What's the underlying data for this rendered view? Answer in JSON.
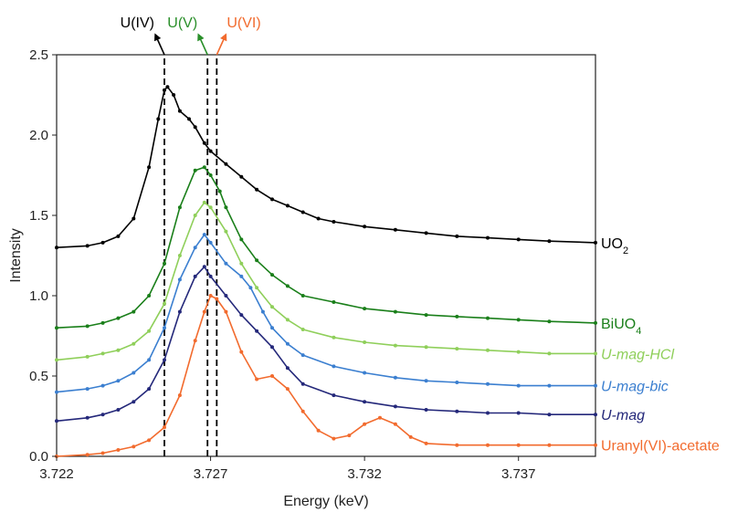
{
  "chart_data": {
    "type": "line",
    "title": "",
    "xlabel": "Energy (keV)",
    "ylabel": "Intensity",
    "xlim": [
      3.722,
      3.7395
    ],
    "ylim": [
      0,
      2.5
    ],
    "xticks": [
      3.722,
      3.727,
      3.732,
      3.737
    ],
    "xtick_labels": [
      "3.722",
      "3.727",
      "3.732",
      "3.737"
    ],
    "yticks": [
      0,
      0.5,
      1.0,
      1.5,
      2.0,
      2.5
    ],
    "ytick_labels": [
      "0.0",
      "0.5",
      "1.0",
      "1.5",
      "2.0",
      "2.5"
    ],
    "grid": false,
    "reference_lines": [
      {
        "label": "U(IV)",
        "x": 3.7255,
        "color": "#000000",
        "arrow": "left"
      },
      {
        "label": "U(V)",
        "x": 3.7269,
        "color": "#2a8f2a",
        "arrow": "left"
      },
      {
        "label": "U(VI)",
        "x": 3.7272,
        "color": "#f26b2e",
        "arrow": "right"
      }
    ],
    "series": [
      {
        "name": "UO",
        "name_sub": "2",
        "italic": false,
        "color": "#000000",
        "points": [
          [
            3.722,
            1.3
          ],
          [
            3.723,
            1.31
          ],
          [
            3.7235,
            1.33
          ],
          [
            3.724,
            1.37
          ],
          [
            3.7245,
            1.48
          ],
          [
            3.725,
            1.8
          ],
          [
            3.7253,
            2.1
          ],
          [
            3.7255,
            2.28
          ],
          [
            3.7256,
            2.3
          ],
          [
            3.7258,
            2.25
          ],
          [
            3.726,
            2.15
          ],
          [
            3.7263,
            2.1
          ],
          [
            3.7265,
            2.05
          ],
          [
            3.7268,
            1.95
          ],
          [
            3.727,
            1.9
          ],
          [
            3.7275,
            1.82
          ],
          [
            3.728,
            1.74
          ],
          [
            3.7285,
            1.66
          ],
          [
            3.729,
            1.6
          ],
          [
            3.7295,
            1.56
          ],
          [
            3.73,
            1.52
          ],
          [
            3.7305,
            1.48
          ],
          [
            3.731,
            1.46
          ],
          [
            3.732,
            1.43
          ],
          [
            3.733,
            1.41
          ],
          [
            3.734,
            1.39
          ],
          [
            3.735,
            1.37
          ],
          [
            3.736,
            1.36
          ],
          [
            3.737,
            1.35
          ],
          [
            3.738,
            1.34
          ],
          [
            3.7395,
            1.33
          ]
        ]
      },
      {
        "name": "BiUO",
        "name_sub": "4",
        "italic": false,
        "color": "#1a7f1a",
        "points": [
          [
            3.722,
            0.8
          ],
          [
            3.723,
            0.81
          ],
          [
            3.7235,
            0.83
          ],
          [
            3.724,
            0.86
          ],
          [
            3.7245,
            0.9
          ],
          [
            3.725,
            1.0
          ],
          [
            3.7255,
            1.2
          ],
          [
            3.726,
            1.55
          ],
          [
            3.7265,
            1.78
          ],
          [
            3.7268,
            1.8
          ],
          [
            3.727,
            1.75
          ],
          [
            3.7273,
            1.65
          ],
          [
            3.7275,
            1.55
          ],
          [
            3.728,
            1.35
          ],
          [
            3.7285,
            1.22
          ],
          [
            3.729,
            1.13
          ],
          [
            3.7295,
            1.06
          ],
          [
            3.73,
            1.0
          ],
          [
            3.731,
            0.96
          ],
          [
            3.732,
            0.92
          ],
          [
            3.733,
            0.9
          ],
          [
            3.734,
            0.88
          ],
          [
            3.735,
            0.87
          ],
          [
            3.736,
            0.86
          ],
          [
            3.737,
            0.85
          ],
          [
            3.738,
            0.84
          ],
          [
            3.7395,
            0.83
          ]
        ]
      },
      {
        "name": "U-mag-HCl",
        "name_sub": "",
        "italic": true,
        "color": "#8fcf5a",
        "points": [
          [
            3.722,
            0.6
          ],
          [
            3.723,
            0.62
          ],
          [
            3.7235,
            0.64
          ],
          [
            3.724,
            0.66
          ],
          [
            3.7245,
            0.7
          ],
          [
            3.725,
            0.78
          ],
          [
            3.7255,
            0.95
          ],
          [
            3.726,
            1.25
          ],
          [
            3.7265,
            1.5
          ],
          [
            3.7268,
            1.58
          ],
          [
            3.727,
            1.55
          ],
          [
            3.7275,
            1.4
          ],
          [
            3.728,
            1.2
          ],
          [
            3.7285,
            1.05
          ],
          [
            3.729,
            0.93
          ],
          [
            3.7295,
            0.85
          ],
          [
            3.73,
            0.79
          ],
          [
            3.731,
            0.74
          ],
          [
            3.732,
            0.71
          ],
          [
            3.733,
            0.69
          ],
          [
            3.734,
            0.68
          ],
          [
            3.735,
            0.67
          ],
          [
            3.736,
            0.66
          ],
          [
            3.737,
            0.65
          ],
          [
            3.738,
            0.64
          ],
          [
            3.7395,
            0.64
          ]
        ]
      },
      {
        "name": "U-mag-bic",
        "name_sub": "",
        "italic": true,
        "color": "#3b7fd0",
        "points": [
          [
            3.722,
            0.4
          ],
          [
            3.723,
            0.42
          ],
          [
            3.7235,
            0.44
          ],
          [
            3.724,
            0.47
          ],
          [
            3.7245,
            0.52
          ],
          [
            3.725,
            0.6
          ],
          [
            3.7255,
            0.8
          ],
          [
            3.726,
            1.1
          ],
          [
            3.7265,
            1.3
          ],
          [
            3.7268,
            1.38
          ],
          [
            3.727,
            1.33
          ],
          [
            3.7275,
            1.2
          ],
          [
            3.728,
            1.12
          ],
          [
            3.7283,
            1.05
          ],
          [
            3.7287,
            0.9
          ],
          [
            3.729,
            0.8
          ],
          [
            3.7295,
            0.7
          ],
          [
            3.73,
            0.63
          ],
          [
            3.731,
            0.56
          ],
          [
            3.732,
            0.52
          ],
          [
            3.733,
            0.49
          ],
          [
            3.734,
            0.47
          ],
          [
            3.735,
            0.46
          ],
          [
            3.736,
            0.45
          ],
          [
            3.737,
            0.44
          ],
          [
            3.738,
            0.44
          ],
          [
            3.7395,
            0.44
          ]
        ]
      },
      {
        "name": "U-mag",
        "name_sub": "",
        "italic": true,
        "color": "#24287a",
        "points": [
          [
            3.722,
            0.22
          ],
          [
            3.723,
            0.24
          ],
          [
            3.7235,
            0.26
          ],
          [
            3.724,
            0.29
          ],
          [
            3.7245,
            0.34
          ],
          [
            3.725,
            0.42
          ],
          [
            3.7255,
            0.6
          ],
          [
            3.726,
            0.9
          ],
          [
            3.7265,
            1.12
          ],
          [
            3.7268,
            1.18
          ],
          [
            3.727,
            1.12
          ],
          [
            3.7275,
            1.0
          ],
          [
            3.728,
            0.88
          ],
          [
            3.7285,
            0.78
          ],
          [
            3.729,
            0.68
          ],
          [
            3.7295,
            0.55
          ],
          [
            3.73,
            0.45
          ],
          [
            3.731,
            0.38
          ],
          [
            3.732,
            0.34
          ],
          [
            3.733,
            0.31
          ],
          [
            3.734,
            0.29
          ],
          [
            3.735,
            0.28
          ],
          [
            3.736,
            0.27
          ],
          [
            3.737,
            0.27
          ],
          [
            3.738,
            0.26
          ],
          [
            3.7395,
            0.26
          ]
        ]
      },
      {
        "name": "Uranyl(VI)-acetate",
        "name_sub": "",
        "italic": false,
        "color": "#f26b2e",
        "points": [
          [
            3.722,
            0.0
          ],
          [
            3.723,
            0.01
          ],
          [
            3.7235,
            0.02
          ],
          [
            3.724,
            0.04
          ],
          [
            3.7245,
            0.06
          ],
          [
            3.725,
            0.1
          ],
          [
            3.7255,
            0.18
          ],
          [
            3.726,
            0.38
          ],
          [
            3.7265,
            0.72
          ],
          [
            3.7268,
            0.9
          ],
          [
            3.727,
            1.0
          ],
          [
            3.7272,
            0.98
          ],
          [
            3.7275,
            0.9
          ],
          [
            3.728,
            0.65
          ],
          [
            3.7285,
            0.48
          ],
          [
            3.729,
            0.5
          ],
          [
            3.7295,
            0.42
          ],
          [
            3.73,
            0.28
          ],
          [
            3.7305,
            0.16
          ],
          [
            3.731,
            0.11
          ],
          [
            3.7315,
            0.13
          ],
          [
            3.732,
            0.2
          ],
          [
            3.7325,
            0.24
          ],
          [
            3.733,
            0.2
          ],
          [
            3.7335,
            0.12
          ],
          [
            3.734,
            0.08
          ],
          [
            3.735,
            0.07
          ],
          [
            3.736,
            0.07
          ],
          [
            3.737,
            0.07
          ],
          [
            3.738,
            0.07
          ],
          [
            3.7395,
            0.07
          ]
        ]
      }
    ]
  }
}
